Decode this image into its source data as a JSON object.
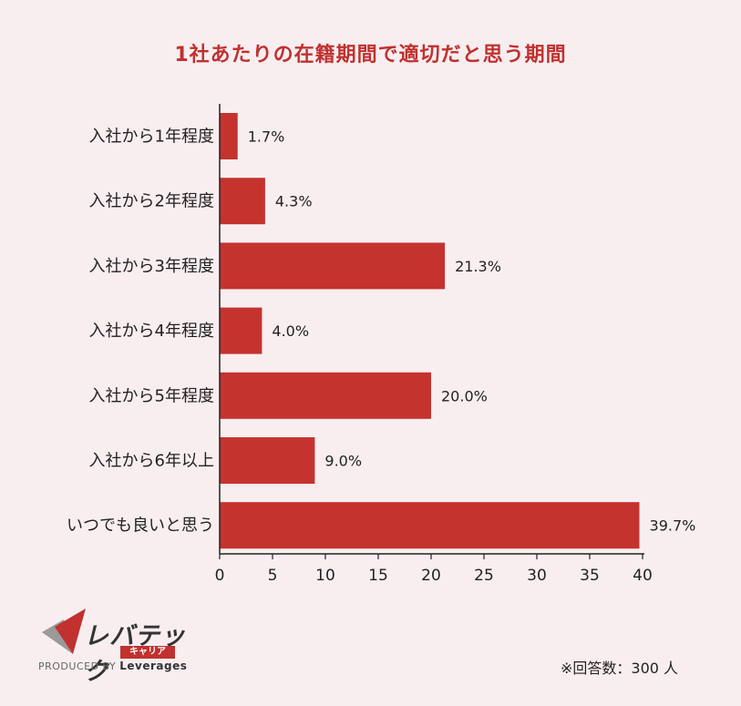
{
  "chart_data": {
    "type": "bar",
    "orientation": "horizontal",
    "title": "1社あたりの在籍期間で適切だと思う期間",
    "categories": [
      "入社から1年程度",
      "入社から2年程度",
      "入社から3年程度",
      "入社から4年程度",
      "入社から5年程度",
      "入社から6年以上",
      "いつでも良いと思う"
    ],
    "values": [
      1.7,
      4.3,
      21.3,
      4.0,
      20.0,
      9.0,
      39.7
    ],
    "value_labels": [
      "1.7%",
      "4.3%",
      "21.3%",
      "4.0%",
      "20.0%",
      "9.0%",
      "39.7%"
    ],
    "xlim": [
      0,
      40
    ],
    "xticks": [
      0,
      5,
      10,
      15,
      20,
      25,
      30,
      35,
      40
    ],
    "bar_color": "#c5332f",
    "grid": false
  },
  "logo": {
    "brand": "レバテック",
    "sub": "キャリア",
    "produced_by": "PRODUCED BY",
    "company": "Leverages"
  },
  "note": "※回答数：300 人",
  "colors": {
    "accent": "#c0312f",
    "background": "#f8eef0"
  }
}
